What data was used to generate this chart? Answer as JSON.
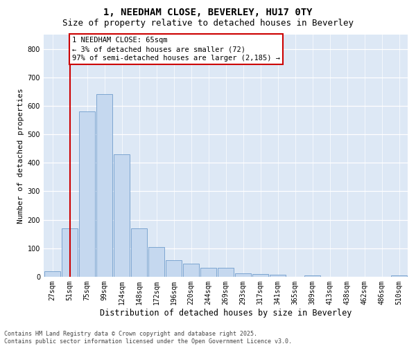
{
  "title_line1": "1, NEEDHAM CLOSE, BEVERLEY, HU17 0TY",
  "title_line2": "Size of property relative to detached houses in Beverley",
  "xlabel": "Distribution of detached houses by size in Beverley",
  "ylabel": "Number of detached properties",
  "categories": [
    "27sqm",
    "51sqm",
    "75sqm",
    "99sqm",
    "124sqm",
    "148sqm",
    "172sqm",
    "196sqm",
    "220sqm",
    "244sqm",
    "269sqm",
    "293sqm",
    "317sqm",
    "341sqm",
    "365sqm",
    "389sqm",
    "413sqm",
    "438sqm",
    "462sqm",
    "486sqm",
    "510sqm"
  ],
  "values": [
    20,
    170,
    580,
    640,
    430,
    170,
    105,
    58,
    45,
    32,
    32,
    13,
    10,
    8,
    0,
    5,
    0,
    0,
    0,
    0,
    5
  ],
  "bar_color": "#c5d8ef",
  "bar_edge_color": "#5b8ec4",
  "vline_x_index": 1,
  "vline_color": "#cc0000",
  "annotation_text": "1 NEEDHAM CLOSE: 65sqm\n← 3% of detached houses are smaller (72)\n97% of semi-detached houses are larger (2,185) →",
  "annotation_box_facecolor": "#ffffff",
  "annotation_box_edgecolor": "#cc0000",
  "ylim": [
    0,
    850
  ],
  "yticks": [
    0,
    100,
    200,
    300,
    400,
    500,
    600,
    700,
    800
  ],
  "fig_facecolor": "#ffffff",
  "plot_facecolor": "#dde8f5",
  "footer_text": "Contains HM Land Registry data © Crown copyright and database right 2025.\nContains public sector information licensed under the Open Government Licence v3.0.",
  "title_fontsize": 10,
  "subtitle_fontsize": 9,
  "ylabel_fontsize": 8,
  "xlabel_fontsize": 8.5,
  "tick_fontsize": 7,
  "annotation_fontsize": 7.5,
  "footer_fontsize": 6
}
